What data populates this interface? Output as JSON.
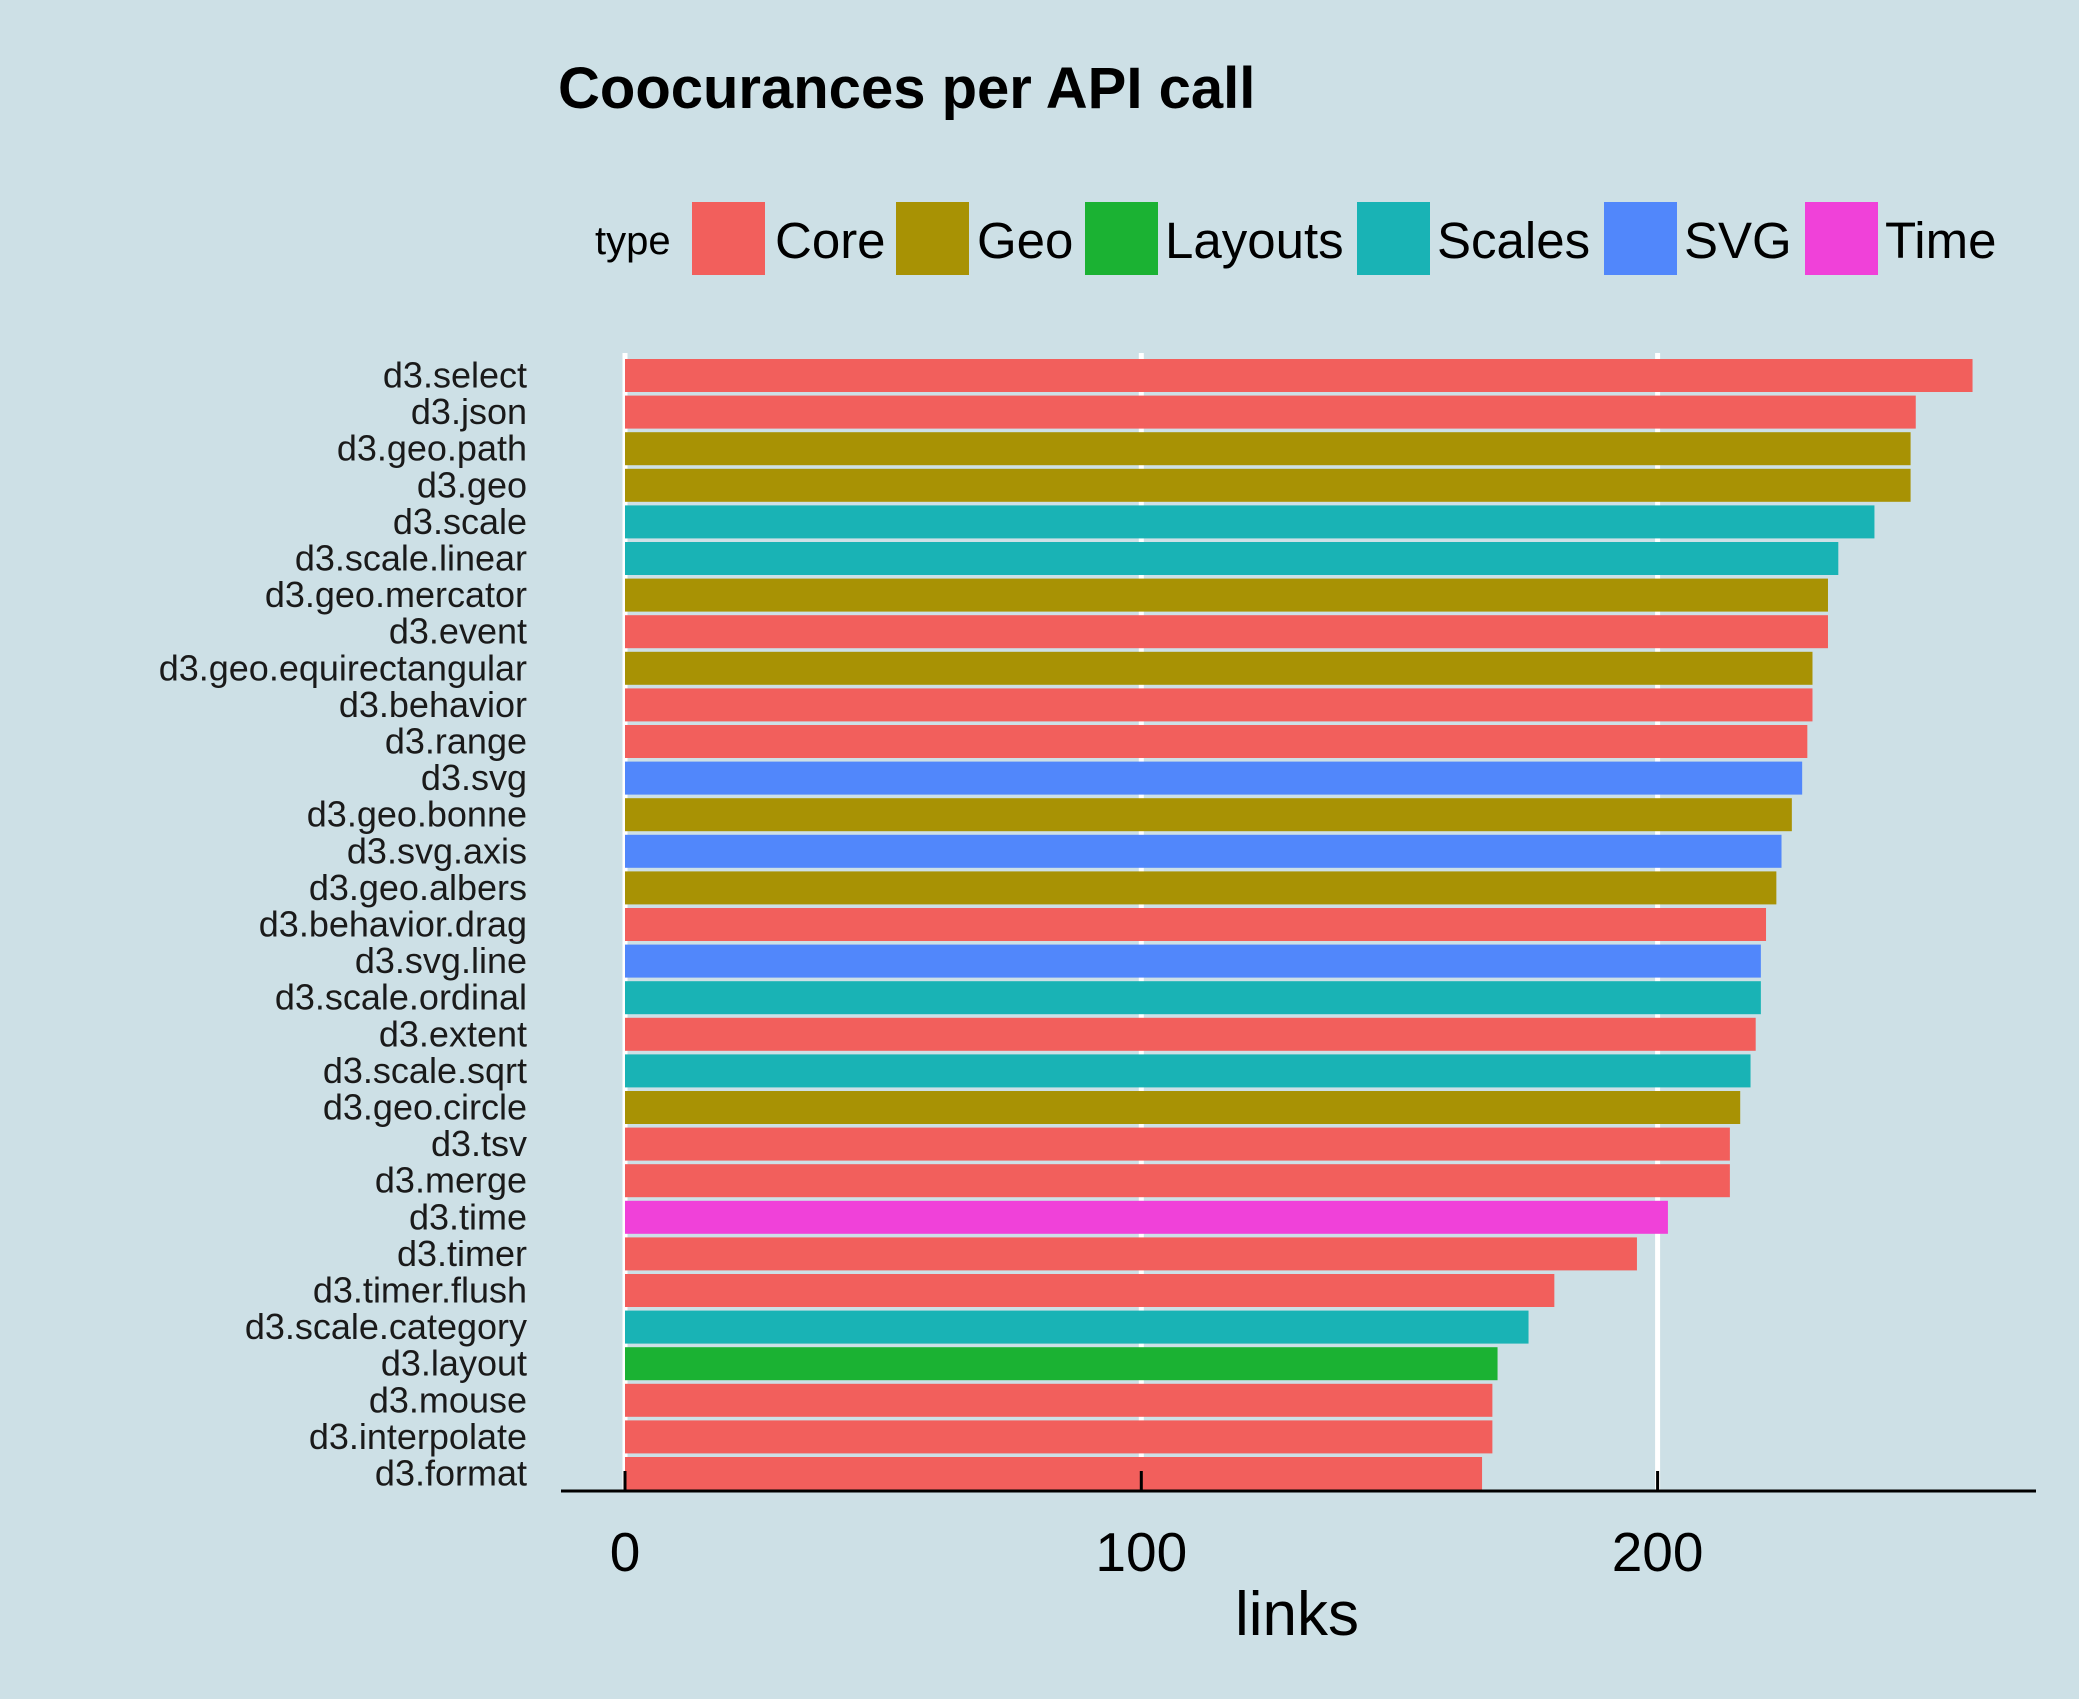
{
  "chart_data": {
    "type": "bar",
    "orientation": "horizontal",
    "title": "Coocurances per API call",
    "xlabel": "links",
    "ylabel": "",
    "xlim": [
      0,
      270
    ],
    "xticks": [
      0,
      100,
      200
    ],
    "grid": true,
    "legend": {
      "title": "type",
      "position": "top",
      "entries": [
        {
          "name": "Core",
          "color": "#f25f5c"
        },
        {
          "name": "Geo",
          "color": "#a89204"
        },
        {
          "name": "Layouts",
          "color": "#1bb233"
        },
        {
          "name": "Scales",
          "color": "#19b3b5"
        },
        {
          "name": "SVG",
          "color": "#5187fb"
        },
        {
          "name": "Time",
          "color": "#f041d9"
        }
      ]
    },
    "categories": [
      "d3.select",
      "d3.json",
      "d3.geo.path",
      "d3.geo",
      "d3.scale",
      "d3.scale.linear",
      "d3.geo.mercator",
      "d3.event",
      "d3.geo.equirectangular",
      "d3.behavior",
      "d3.range",
      "d3.svg",
      "d3.geo.bonne",
      "d3.svg.axis",
      "d3.geo.albers",
      "d3.behavior.drag",
      "d3.svg.line",
      "d3.scale.ordinal",
      "d3.extent",
      "d3.scale.sqrt",
      "d3.geo.circle",
      "d3.tsv",
      "d3.merge",
      "d3.time",
      "d3.timer",
      "d3.timer.flush",
      "d3.scale.category",
      "d3.layout",
      "d3.mouse",
      "d3.interpolate",
      "d3.format"
    ],
    "values": [
      261,
      250,
      249,
      249,
      242,
      235,
      233,
      233,
      230,
      230,
      229,
      228,
      226,
      224,
      223,
      221,
      220,
      220,
      219,
      218,
      216,
      214,
      214,
      202,
      196,
      180,
      175,
      169,
      168,
      168,
      166
    ],
    "types": [
      "Core",
      "Core",
      "Geo",
      "Geo",
      "Scales",
      "Scales",
      "Geo",
      "Core",
      "Geo",
      "Core",
      "Core",
      "SVG",
      "Geo",
      "SVG",
      "Geo",
      "Core",
      "SVG",
      "Scales",
      "Core",
      "Scales",
      "Geo",
      "Core",
      "Core",
      "Time",
      "Core",
      "Core",
      "Scales",
      "Layouts",
      "Core",
      "Core",
      "Core"
    ]
  }
}
